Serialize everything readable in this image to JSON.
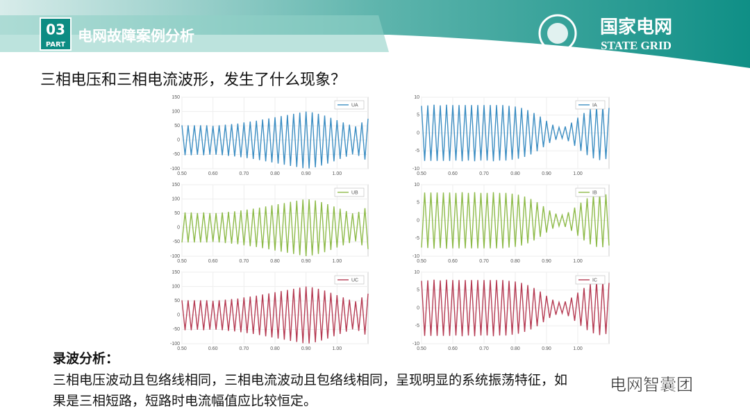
{
  "header": {
    "part_number": "03",
    "part_label": "PART",
    "title": "电网故障案例分析"
  },
  "logo": {
    "cn": "国家电网",
    "en": "STATE GRID"
  },
  "question": "三相电压和三相电流波形，发生了什么现象？",
  "analysis": {
    "heading": "录波分析：",
    "lines": [
      "三相电压波动且包络线相同，三相电流波动且包络线相同，呈现明显的系统振荡特征，如",
      "果是三相短路，短路时电流幅值应比较恒定。"
    ]
  },
  "watermark": "电网智囊团",
  "chart_data": [
    {
      "type": "line",
      "grid": true,
      "legend": "upper right",
      "xlim": [
        0.5,
        1.1
      ],
      "ylim": [
        -100,
        150
      ],
      "yticks": [
        -100,
        -50,
        0,
        50,
        100,
        150
      ],
      "xticks": [
        {
          "value": 0.5,
          "label": "0.50"
        },
        {
          "value": 0.6,
          "label": "0.60"
        },
        {
          "value": 0.7,
          "label": "0.70"
        },
        {
          "value": 0.8,
          "label": "0.80"
        },
        {
          "value": 0.9,
          "label": "0.90"
        },
        {
          "value": 1.0,
          "label": "1.00"
        }
      ],
      "x": [
        0.5,
        0.51,
        0.52,
        0.53,
        0.54,
        0.55,
        0.56,
        0.57,
        0.58,
        0.59,
        0.6,
        0.61,
        0.62,
        0.63,
        0.64,
        0.65,
        0.66,
        0.67,
        0.68,
        0.69,
        0.7,
        0.71,
        0.72,
        0.73,
        0.74,
        0.75,
        0.76,
        0.77,
        0.78,
        0.79,
        0.8,
        0.81,
        0.82,
        0.83,
        0.84,
        0.85,
        0.86,
        0.87,
        0.88,
        0.89,
        0.9,
        0.91,
        0.92,
        0.93,
        0.94,
        0.95,
        0.96,
        0.97,
        0.98,
        0.99,
        1.0,
        1.01,
        1.02,
        1.03,
        1.04,
        1.05,
        1.06,
        1.07,
        1.08,
        1.09,
        1.1
      ],
      "series": [
        {
          "name": "UA",
          "color": "#3b8dc2",
          "values": [
            52,
            -53,
            52,
            -53,
            52,
            -51,
            52,
            -53,
            52,
            -51,
            50,
            -51,
            52,
            -53,
            54,
            -55,
            56,
            -57,
            58,
            -60,
            62,
            -63,
            65,
            -66,
            68,
            -70,
            72,
            -74,
            76,
            -78,
            80,
            -82,
            84,
            -86,
            88,
            -90,
            92,
            -94,
            96,
            -98,
            100,
            -99,
            97,
            -95,
            92,
            -89,
            86,
            -82,
            78,
            -74,
            70,
            -66,
            62,
            -58,
            54,
            -50,
            48,
            -55,
            62,
            -68,
            75
          ]
        }
      ]
    },
    {
      "type": "line",
      "grid": true,
      "legend": "upper right",
      "xlim": [
        0.5,
        1.1
      ],
      "ylim": [
        -10,
        10
      ],
      "yticks": [
        -10,
        -5,
        0,
        5,
        10
      ],
      "xticks": [
        {
          "value": 0.5,
          "label": "0.50"
        },
        {
          "value": 0.6,
          "label": "0.60"
        },
        {
          "value": 0.7,
          "label": "0.70"
        },
        {
          "value": 0.8,
          "label": "0.80"
        },
        {
          "value": 0.9,
          "label": "0.90"
        },
        {
          "value": 1.0,
          "label": "1.00"
        }
      ],
      "x": [
        0.5,
        0.51,
        0.52,
        0.53,
        0.54,
        0.55,
        0.56,
        0.57,
        0.58,
        0.59,
        0.6,
        0.61,
        0.62,
        0.63,
        0.64,
        0.65,
        0.66,
        0.67,
        0.68,
        0.69,
        0.7,
        0.71,
        0.72,
        0.73,
        0.74,
        0.75,
        0.76,
        0.77,
        0.78,
        0.79,
        0.8,
        0.81,
        0.82,
        0.83,
        0.84,
        0.85,
        0.86,
        0.87,
        0.88,
        0.89,
        0.9,
        0.91,
        0.92,
        0.93,
        0.94,
        0.95,
        0.96,
        0.97,
        0.98,
        0.99,
        1.0,
        1.01,
        1.02,
        1.03,
        1.04,
        1.05,
        1.06,
        1.07,
        1.08,
        1.09,
        1.1
      ],
      "series": [
        {
          "name": "IA",
          "color": "#3b8dc2",
          "values": [
            7.6,
            -7.8,
            7.7,
            -7.8,
            7.9,
            -7.8,
            7.7,
            -7.8,
            7.9,
            -7.8,
            7.8,
            -7.7,
            7.8,
            -7.9,
            7.8,
            -7.7,
            7.8,
            -7.9,
            7.8,
            -7.7,
            7.8,
            -7.7,
            7.8,
            -7.9,
            7.8,
            -7.7,
            7.8,
            -7.7,
            7.6,
            -7.5,
            7.4,
            -7.2,
            7.0,
            -6.7,
            6.4,
            -6.0,
            5.6,
            -5.1,
            4.6,
            -4.0,
            3.4,
            -2.8,
            2.3,
            -1.9,
            1.6,
            -1.5,
            1.8,
            -2.3,
            2.9,
            -3.6,
            4.3,
            -5.0,
            5.6,
            -6.2,
            6.7,
            -7.1,
            7.4,
            -7.6,
            7.5,
            -7.3,
            7.0
          ]
        }
      ]
    },
    {
      "type": "line",
      "grid": true,
      "legend": "upper right",
      "xlim": [
        0.5,
        1.1
      ],
      "ylim": [
        -100,
        150
      ],
      "yticks": [
        -100,
        -50,
        0,
        50,
        100,
        150
      ],
      "xticks": [
        {
          "value": 0.5,
          "label": "0.50"
        },
        {
          "value": 0.6,
          "label": "0.60"
        },
        {
          "value": 0.7,
          "label": "0.70"
        },
        {
          "value": 0.8,
          "label": "0.80"
        },
        {
          "value": 0.9,
          "label": "0.90"
        },
        {
          "value": 1.0,
          "label": "1.00"
        }
      ],
      "x": [
        0.5,
        0.51,
        0.52,
        0.53,
        0.54,
        0.55,
        0.56,
        0.57,
        0.58,
        0.59,
        0.6,
        0.61,
        0.62,
        0.63,
        0.64,
        0.65,
        0.66,
        0.67,
        0.68,
        0.69,
        0.7,
        0.71,
        0.72,
        0.73,
        0.74,
        0.75,
        0.76,
        0.77,
        0.78,
        0.79,
        0.8,
        0.81,
        0.82,
        0.83,
        0.84,
        0.85,
        0.86,
        0.87,
        0.88,
        0.89,
        0.9,
        0.91,
        0.92,
        0.93,
        0.94,
        0.95,
        0.96,
        0.97,
        0.98,
        0.99,
        1.0,
        1.01,
        1.02,
        1.03,
        1.04,
        1.05,
        1.06,
        1.07,
        1.08,
        1.09,
        1.1
      ],
      "series": [
        {
          "name": "UB",
          "color": "#8dba48",
          "values": [
            -52,
            53,
            -52,
            53,
            -52,
            51,
            -52,
            53,
            -52,
            51,
            -50,
            51,
            -52,
            53,
            -54,
            55,
            -56,
            57,
            -58,
            60,
            -62,
            63,
            -65,
            66,
            -68,
            70,
            -72,
            74,
            -76,
            78,
            -80,
            82,
            -84,
            86,
            -88,
            90,
            -92,
            94,
            -96,
            98,
            -100,
            99,
            -97,
            95,
            -92,
            89,
            -86,
            82,
            -78,
            74,
            -70,
            66,
            -62,
            58,
            -54,
            50,
            -48,
            55,
            -62,
            68,
            -75
          ]
        }
      ]
    },
    {
      "type": "line",
      "grid": true,
      "legend": "upper right",
      "xlim": [
        0.5,
        1.1
      ],
      "ylim": [
        -10,
        10
      ],
      "yticks": [
        -10,
        -5,
        0,
        5,
        10
      ],
      "xticks": [
        {
          "value": 0.5,
          "label": "0.50"
        },
        {
          "value": 0.6,
          "label": "0.60"
        },
        {
          "value": 0.7,
          "label": "0.70"
        },
        {
          "value": 0.8,
          "label": "0.80"
        },
        {
          "value": 0.9,
          "label": "0.90"
        },
        {
          "value": 1.0,
          "label": "1.00"
        }
      ],
      "x": [
        0.5,
        0.51,
        0.52,
        0.53,
        0.54,
        0.55,
        0.56,
        0.57,
        0.58,
        0.59,
        0.6,
        0.61,
        0.62,
        0.63,
        0.64,
        0.65,
        0.66,
        0.67,
        0.68,
        0.69,
        0.7,
        0.71,
        0.72,
        0.73,
        0.74,
        0.75,
        0.76,
        0.77,
        0.78,
        0.79,
        0.8,
        0.81,
        0.82,
        0.83,
        0.84,
        0.85,
        0.86,
        0.87,
        0.88,
        0.89,
        0.9,
        0.91,
        0.92,
        0.93,
        0.94,
        0.95,
        0.96,
        0.97,
        0.98,
        0.99,
        1.0,
        1.01,
        1.02,
        1.03,
        1.04,
        1.05,
        1.06,
        1.07,
        1.08,
        1.09,
        1.1
      ],
      "series": [
        {
          "name": "IB",
          "color": "#8dba48",
          "values": [
            -7.6,
            7.8,
            -7.7,
            7.8,
            -7.9,
            7.8,
            -7.7,
            7.8,
            -7.9,
            7.8,
            -7.8,
            7.7,
            -7.8,
            7.9,
            -7.8,
            7.7,
            -7.8,
            7.9,
            -7.8,
            7.7,
            -7.8,
            7.7,
            -7.8,
            7.9,
            -7.8,
            7.7,
            -7.8,
            7.7,
            -7.6,
            7.5,
            -7.4,
            7.2,
            -7.0,
            6.7,
            -6.4,
            6.0,
            -5.6,
            5.1,
            -4.6,
            4.0,
            -3.4,
            2.8,
            -2.3,
            1.9,
            -1.6,
            1.5,
            -1.8,
            2.3,
            -2.9,
            3.6,
            -4.3,
            5.0,
            -5.6,
            6.2,
            -6.7,
            7.1,
            -7.4,
            7.6,
            -7.5,
            7.3,
            -7.0
          ]
        }
      ]
    },
    {
      "type": "line",
      "grid": true,
      "legend": "upper right",
      "xlim": [
        0.5,
        1.1
      ],
      "ylim": [
        -100,
        150
      ],
      "yticks": [
        -100,
        -50,
        0,
        50,
        100,
        150
      ],
      "xticks": [
        {
          "value": 0.5,
          "label": "0.50"
        },
        {
          "value": 0.6,
          "label": "0.60"
        },
        {
          "value": 0.7,
          "label": "0.70"
        },
        {
          "value": 0.8,
          "label": "0.80"
        },
        {
          "value": 0.9,
          "label": "0.90"
        },
        {
          "value": 1.0,
          "label": "1.00"
        }
      ],
      "x": [
        0.5,
        0.51,
        0.52,
        0.53,
        0.54,
        0.55,
        0.56,
        0.57,
        0.58,
        0.59,
        0.6,
        0.61,
        0.62,
        0.63,
        0.64,
        0.65,
        0.66,
        0.67,
        0.68,
        0.69,
        0.7,
        0.71,
        0.72,
        0.73,
        0.74,
        0.75,
        0.76,
        0.77,
        0.78,
        0.79,
        0.8,
        0.81,
        0.82,
        0.83,
        0.84,
        0.85,
        0.86,
        0.87,
        0.88,
        0.89,
        0.9,
        0.91,
        0.92,
        0.93,
        0.94,
        0.95,
        0.96,
        0.97,
        0.98,
        0.99,
        1.0,
        1.01,
        1.02,
        1.03,
        1.04,
        1.05,
        1.06,
        1.07,
        1.08,
        1.09,
        1.1
      ],
      "series": [
        {
          "name": "UC",
          "color": "#b53a52",
          "values": [
            52,
            -53,
            52,
            -53,
            52,
            -51,
            52,
            -53,
            52,
            -51,
            50,
            -51,
            52,
            -53,
            54,
            -55,
            56,
            -57,
            58,
            -60,
            62,
            -63,
            65,
            -66,
            68,
            -70,
            72,
            -74,
            76,
            -78,
            80,
            -82,
            84,
            -86,
            88,
            -90,
            92,
            -94,
            96,
            -98,
            100,
            -99,
            97,
            -95,
            92,
            -89,
            86,
            -82,
            78,
            -74,
            70,
            -66,
            62,
            -58,
            54,
            -50,
            48,
            -55,
            62,
            -68,
            75
          ]
        }
      ]
    },
    {
      "type": "line",
      "grid": true,
      "legend": "upper right",
      "xlim": [
        0.5,
        1.1
      ],
      "ylim": [
        -10,
        10
      ],
      "yticks": [
        -10,
        -5,
        0,
        5,
        10
      ],
      "xticks": [
        {
          "value": 0.5,
          "label": "0.50"
        },
        {
          "value": 0.6,
          "label": "0.60"
        },
        {
          "value": 0.7,
          "label": "0.70"
        },
        {
          "value": 0.8,
          "label": "0.80"
        },
        {
          "value": 0.9,
          "label": "0.90"
        },
        {
          "value": 1.0,
          "label": "1.00"
        }
      ],
      "x": [
        0.5,
        0.51,
        0.52,
        0.53,
        0.54,
        0.55,
        0.56,
        0.57,
        0.58,
        0.59,
        0.6,
        0.61,
        0.62,
        0.63,
        0.64,
        0.65,
        0.66,
        0.67,
        0.68,
        0.69,
        0.7,
        0.71,
        0.72,
        0.73,
        0.74,
        0.75,
        0.76,
        0.77,
        0.78,
        0.79,
        0.8,
        0.81,
        0.82,
        0.83,
        0.84,
        0.85,
        0.86,
        0.87,
        0.88,
        0.89,
        0.9,
        0.91,
        0.92,
        0.93,
        0.94,
        0.95,
        0.96,
        0.97,
        0.98,
        0.99,
        1.0,
        1.01,
        1.02,
        1.03,
        1.04,
        1.05,
        1.06,
        1.07,
        1.08,
        1.09,
        1.1
      ],
      "series": [
        {
          "name": "IC",
          "color": "#b53a52",
          "values": [
            7.6,
            -7.8,
            7.7,
            -7.8,
            7.9,
            -7.8,
            7.7,
            -7.8,
            7.9,
            -7.8,
            7.8,
            -7.7,
            7.8,
            -7.9,
            7.8,
            -7.7,
            7.8,
            -7.9,
            7.8,
            -7.7,
            7.8,
            -7.7,
            7.8,
            -7.9,
            7.8,
            -7.7,
            7.8,
            -7.7,
            7.6,
            -7.5,
            7.4,
            -7.2,
            7.0,
            -6.7,
            6.4,
            -6.0,
            5.6,
            -5.1,
            4.6,
            -4.0,
            3.4,
            -2.8,
            2.3,
            -1.9,
            1.6,
            -1.5,
            1.8,
            -2.3,
            2.9,
            -3.6,
            4.3,
            -5.0,
            5.6,
            -6.2,
            6.7,
            -7.1,
            7.4,
            -7.6,
            7.5,
            -7.3,
            7.0
          ]
        }
      ]
    }
  ]
}
